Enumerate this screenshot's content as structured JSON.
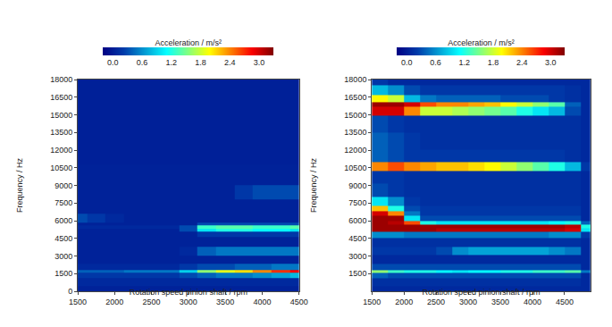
{
  "chart_data": [
    {
      "type": "heatmap",
      "x_label": "Rotation speed pinion shaft / rpm",
      "y_label": "Frequency / Hz",
      "color": "Jet",
      "xlim": [
        1500,
        4500
      ],
      "xticks": [
        1500,
        2000,
        2500,
        3000,
        3500,
        4000,
        4500
      ],
      "ylim": [
        0,
        18000
      ],
      "yticks": [
        0,
        1500,
        3000,
        4500,
        6000,
        7500,
        9000,
        10500,
        12000,
        13500,
        15000,
        16500,
        18000
      ],
      "colorbar": {
        "title": "Acceleration / m/s²",
        "range": [
          -0.2,
          3.3
        ],
        "ticks": [
          {
            "value": 0,
            "label": "0.0"
          },
          0.6,
          1.2,
          1.8,
          2.4,
          {
            "value": 3,
            "label": "3.0"
          }
        ]
      },
      "x": [
        1500,
        1750,
        2000,
        2250,
        2500,
        2750,
        3000,
        3250,
        3500,
        3750,
        4000,
        4250,
        4500
      ],
      "y": [
        0,
        800,
        1450,
        1700,
        1950,
        2700,
        3400,
        4200,
        5000,
        5200,
        5450,
        5700,
        6000,
        7200,
        8400,
        9600,
        12000,
        15000,
        18000
      ],
      "z": [
        [
          0.05,
          0.05,
          0.05,
          0.05,
          0.05,
          0.05,
          0.05,
          0.05,
          0.05,
          0.05,
          0.05,
          0.05,
          0.05
        ],
        [
          0.1,
          0.1,
          0.1,
          0.1,
          0.1,
          0.1,
          0.1,
          0.1,
          0.1,
          0.1,
          0.1,
          0.1,
          0.1
        ],
        [
          0.2,
          0.2,
          0.2,
          0.2,
          0.2,
          0.2,
          0.3,
          0.4,
          0.5,
          0.5,
          0.6,
          0.7,
          0.8
        ],
        [
          0.4,
          0.4,
          0.4,
          0.5,
          0.5,
          0.5,
          0.9,
          1.6,
          1.9,
          2.1,
          2.4,
          2.7,
          2.9
        ],
        [
          0.1,
          0.1,
          0.1,
          0.1,
          0.1,
          0.1,
          0.2,
          0.3,
          0.3,
          0.4,
          0.4,
          0.5,
          0.5
        ],
        [
          0.05,
          0.05,
          0.05,
          0.05,
          0.05,
          0.05,
          0.05,
          0.05,
          0.05,
          0.05,
          0.05,
          0.05,
          0.05
        ],
        [
          0.05,
          0.05,
          0.05,
          0.05,
          0.05,
          0.05,
          0.1,
          0.4,
          0.5,
          0.5,
          0.5,
          0.5,
          0.5
        ],
        [
          0.05,
          0.05,
          0.05,
          0.05,
          0.05,
          0.05,
          0.05,
          0.05,
          0.05,
          0.05,
          0.05,
          0.05,
          0.05
        ],
        [
          0.05,
          0.05,
          0.05,
          0.05,
          0.05,
          0.05,
          0.05,
          0.2,
          0.2,
          0.2,
          0.2,
          0.2,
          0.2
        ],
        [
          0.05,
          0.05,
          0.05,
          0.05,
          0.05,
          0.05,
          0.3,
          1.0,
          1.2,
          1.2,
          1.1,
          1.1,
          1.0
        ],
        [
          0.1,
          0.1,
          0.1,
          0.1,
          0.1,
          0.1,
          0.3,
          1.3,
          1.4,
          1.4,
          1.3,
          1.3,
          1.4
        ],
        [
          0.05,
          0.05,
          0.05,
          0.05,
          0.05,
          0.05,
          0.05,
          0.3,
          0.3,
          0.3,
          0.3,
          0.3,
          0.3
        ],
        [
          0.3,
          0.2,
          0.1,
          0.05,
          0.05,
          0.05,
          0.05,
          0.05,
          0.05,
          0.05,
          0.05,
          0.05,
          0.05
        ],
        [
          0.05,
          0.05,
          0.05,
          0.05,
          0.05,
          0.05,
          0.05,
          0.05,
          0.05,
          0.05,
          0.05,
          0.05,
          0.05
        ],
        [
          0.05,
          0.05,
          0.05,
          0.05,
          0.05,
          0.05,
          0.05,
          0.05,
          0.05,
          0.2,
          0.3,
          0.3,
          0.3
        ],
        [
          0.05,
          0.05,
          0.05,
          0.05,
          0.05,
          0.05,
          0.05,
          0.05,
          0.05,
          0.05,
          0.05,
          0.05,
          0.05
        ],
        [
          0.03,
          0.03,
          0.03,
          0.03,
          0.03,
          0.03,
          0.03,
          0.03,
          0.03,
          0.03,
          0.03,
          0.03,
          0.03
        ],
        [
          0.03,
          0.03,
          0.03,
          0.03,
          0.03,
          0.03,
          0.03,
          0.03,
          0.03,
          0.03,
          0.03,
          0.03,
          0.03
        ],
        [
          0.03,
          0.03,
          0.03,
          0.03,
          0.03,
          0.03,
          0.03,
          0.03,
          0.03,
          0.03,
          0.03,
          0.03,
          0.03
        ]
      ]
    },
    {
      "type": "heatmap",
      "x_label": "Rotation speed pinion shaft / rpm",
      "y_label": "Frequency / Hz",
      "color": "Jet",
      "xlim": [
        1500,
        4900
      ],
      "xticks": [
        1500,
        2000,
        2500,
        3000,
        3500,
        4000,
        4500
      ],
      "ylim": [
        0,
        18000
      ],
      "yticks": [
        1500,
        3000,
        4500,
        6000,
        7500,
        9000,
        10500,
        12000,
        13500,
        15000,
        16500,
        18000
      ],
      "colorbar": {
        "title": "Acceleration / m/s²",
        "range": [
          -0.2,
          3.3
        ],
        "ticks": [
          {
            "value": 0,
            "label": "0.0"
          },
          0.6,
          1.2,
          1.8,
          2.4,
          {
            "value": 3,
            "label": "3.0"
          }
        ]
      },
      "x": [
        1625,
        1875,
        2125,
        2375,
        2625,
        2875,
        3125,
        3375,
        3625,
        3875,
        4125,
        4375,
        4625,
        4875
      ],
      "y": [
        0,
        800,
        1450,
        1700,
        1950,
        2700,
        3400,
        4200,
        4900,
        5200,
        5500,
        5800,
        6200,
        6600,
        7000,
        7500,
        8500,
        9800,
        10600,
        11400,
        12700,
        14300,
        15500,
        15900,
        16300,
        17000,
        18000
      ],
      "z": [
        [
          0.1,
          0.1,
          0.1,
          0.1,
          0.1,
          0.1,
          0.1,
          0.1,
          0.1,
          0.1,
          0.1,
          0.1,
          0.1,
          0.1
        ],
        [
          0.15,
          0.15,
          0.15,
          0.15,
          0.15,
          0.15,
          0.15,
          0.15,
          0.15,
          0.15,
          0.15,
          0.15,
          0.15,
          0.1
        ],
        [
          0.4,
          0.3,
          0.3,
          0.3,
          0.3,
          0.3,
          0.3,
          0.3,
          0.3,
          0.3,
          0.3,
          0.3,
          0.3,
          0.1
        ],
        [
          1.6,
          1.3,
          1.2,
          1.2,
          1.1,
          1.0,
          1.1,
          1.1,
          1.2,
          1.2,
          1.3,
          1.3,
          1.4,
          0.5
        ],
        [
          0.3,
          0.3,
          0.3,
          0.3,
          0.3,
          0.3,
          0.3,
          0.3,
          0.3,
          0.3,
          0.3,
          0.3,
          0.3,
          0.1
        ],
        [
          0.1,
          0.1,
          0.1,
          0.1,
          0.1,
          0.1,
          0.1,
          0.1,
          0.1,
          0.1,
          0.1,
          0.1,
          0.1,
          0.1
        ],
        [
          0.2,
          0.2,
          0.2,
          0.2,
          0.3,
          0.6,
          0.7,
          0.7,
          0.7,
          0.7,
          0.7,
          0.6,
          0.5,
          0.1
        ],
        [
          0.15,
          0.15,
          0.15,
          0.15,
          0.15,
          0.15,
          0.15,
          0.15,
          0.15,
          0.15,
          0.15,
          0.15,
          0.15,
          0.1
        ],
        [
          0.6,
          0.6,
          0.5,
          0.5,
          0.5,
          0.5,
          0.5,
          0.5,
          0.5,
          0.5,
          0.5,
          0.6,
          0.6,
          0.2
        ],
        [
          3.2,
          3.2,
          3.2,
          3.2,
          3.1,
          3.1,
          3.1,
          3.1,
          3.1,
          3.1,
          3.1,
          3.1,
          3.0,
          1.0
        ],
        [
          3.2,
          3.2,
          3.2,
          3.2,
          3.2,
          3.2,
          3.2,
          3.2,
          3.2,
          3.2,
          3.2,
          3.2,
          3.1,
          1.2
        ],
        [
          3.2,
          3.1,
          2.6,
          1.2,
          1.0,
          1.0,
          1.0,
          1.0,
          1.0,
          1.0,
          1.0,
          1.1,
          1.2,
          0.4
        ],
        [
          3.2,
          3.2,
          1.0,
          0.3,
          0.3,
          0.3,
          0.3,
          0.3,
          0.3,
          0.3,
          0.3,
          0.3,
          0.3,
          0.1
        ],
        [
          3.0,
          2.4,
          0.5,
          0.2,
          0.2,
          0.2,
          0.2,
          0.2,
          0.2,
          0.2,
          0.2,
          0.2,
          0.2,
          0.1
        ],
        [
          2.2,
          1.2,
          0.3,
          0.2,
          0.2,
          0.2,
          0.2,
          0.2,
          0.2,
          0.2,
          0.2,
          0.2,
          0.2,
          0.1
        ],
        [
          1.0,
          0.6,
          0.2,
          0.15,
          0.15,
          0.15,
          0.15,
          0.15,
          0.15,
          0.15,
          0.15,
          0.15,
          0.15,
          0.1
        ],
        [
          0.3,
          0.2,
          0.15,
          0.15,
          0.15,
          0.15,
          0.15,
          0.15,
          0.15,
          0.15,
          0.15,
          0.15,
          0.15,
          0.1
        ],
        [
          0.2,
          0.2,
          0.15,
          0.15,
          0.15,
          0.15,
          0.15,
          0.15,
          0.15,
          0.15,
          0.15,
          0.15,
          0.15,
          0.1
        ],
        [
          2.4,
          2.6,
          2.4,
          2.3,
          2.2,
          2.2,
          2.1,
          2.0,
          1.8,
          1.6,
          1.4,
          1.2,
          0.8,
          0.2
        ],
        [
          0.4,
          0.3,
          0.2,
          0.2,
          0.2,
          0.2,
          0.2,
          0.2,
          0.2,
          0.2,
          0.2,
          0.2,
          0.15,
          0.1
        ],
        [
          0.4,
          0.3,
          0.2,
          0.15,
          0.15,
          0.15,
          0.15,
          0.15,
          0.15,
          0.15,
          0.15,
          0.15,
          0.15,
          0.1
        ],
        [
          0.3,
          0.2,
          0.15,
          0.15,
          0.15,
          0.15,
          0.15,
          0.15,
          0.15,
          0.15,
          0.15,
          0.15,
          0.15,
          0.1
        ],
        [
          3.0,
          3.0,
          2.4,
          1.8,
          1.8,
          1.7,
          1.6,
          1.5,
          1.4,
          1.2,
          1.0,
          0.8,
          0.3,
          0.1
        ],
        [
          3.2,
          3.2,
          3.0,
          2.6,
          2.4,
          2.4,
          2.3,
          2.2,
          2.0,
          1.8,
          1.6,
          1.4,
          0.4,
          0.1
        ],
        [
          2.0,
          1.8,
          0.8,
          0.5,
          0.4,
          0.4,
          0.4,
          0.4,
          0.3,
          0.3,
          0.3,
          0.2,
          0.15,
          0.1
        ],
        [
          0.8,
          0.6,
          0.3,
          0.2,
          0.2,
          0.2,
          0.2,
          0.2,
          0.2,
          0.2,
          0.2,
          0.2,
          0.15,
          0.1
        ],
        [
          0.2,
          0.1,
          0.1,
          0.1,
          0.1,
          0.1,
          0.1,
          0.1,
          0.1,
          0.1,
          0.1,
          0.1,
          0.1,
          0.1
        ]
      ]
    }
  ]
}
